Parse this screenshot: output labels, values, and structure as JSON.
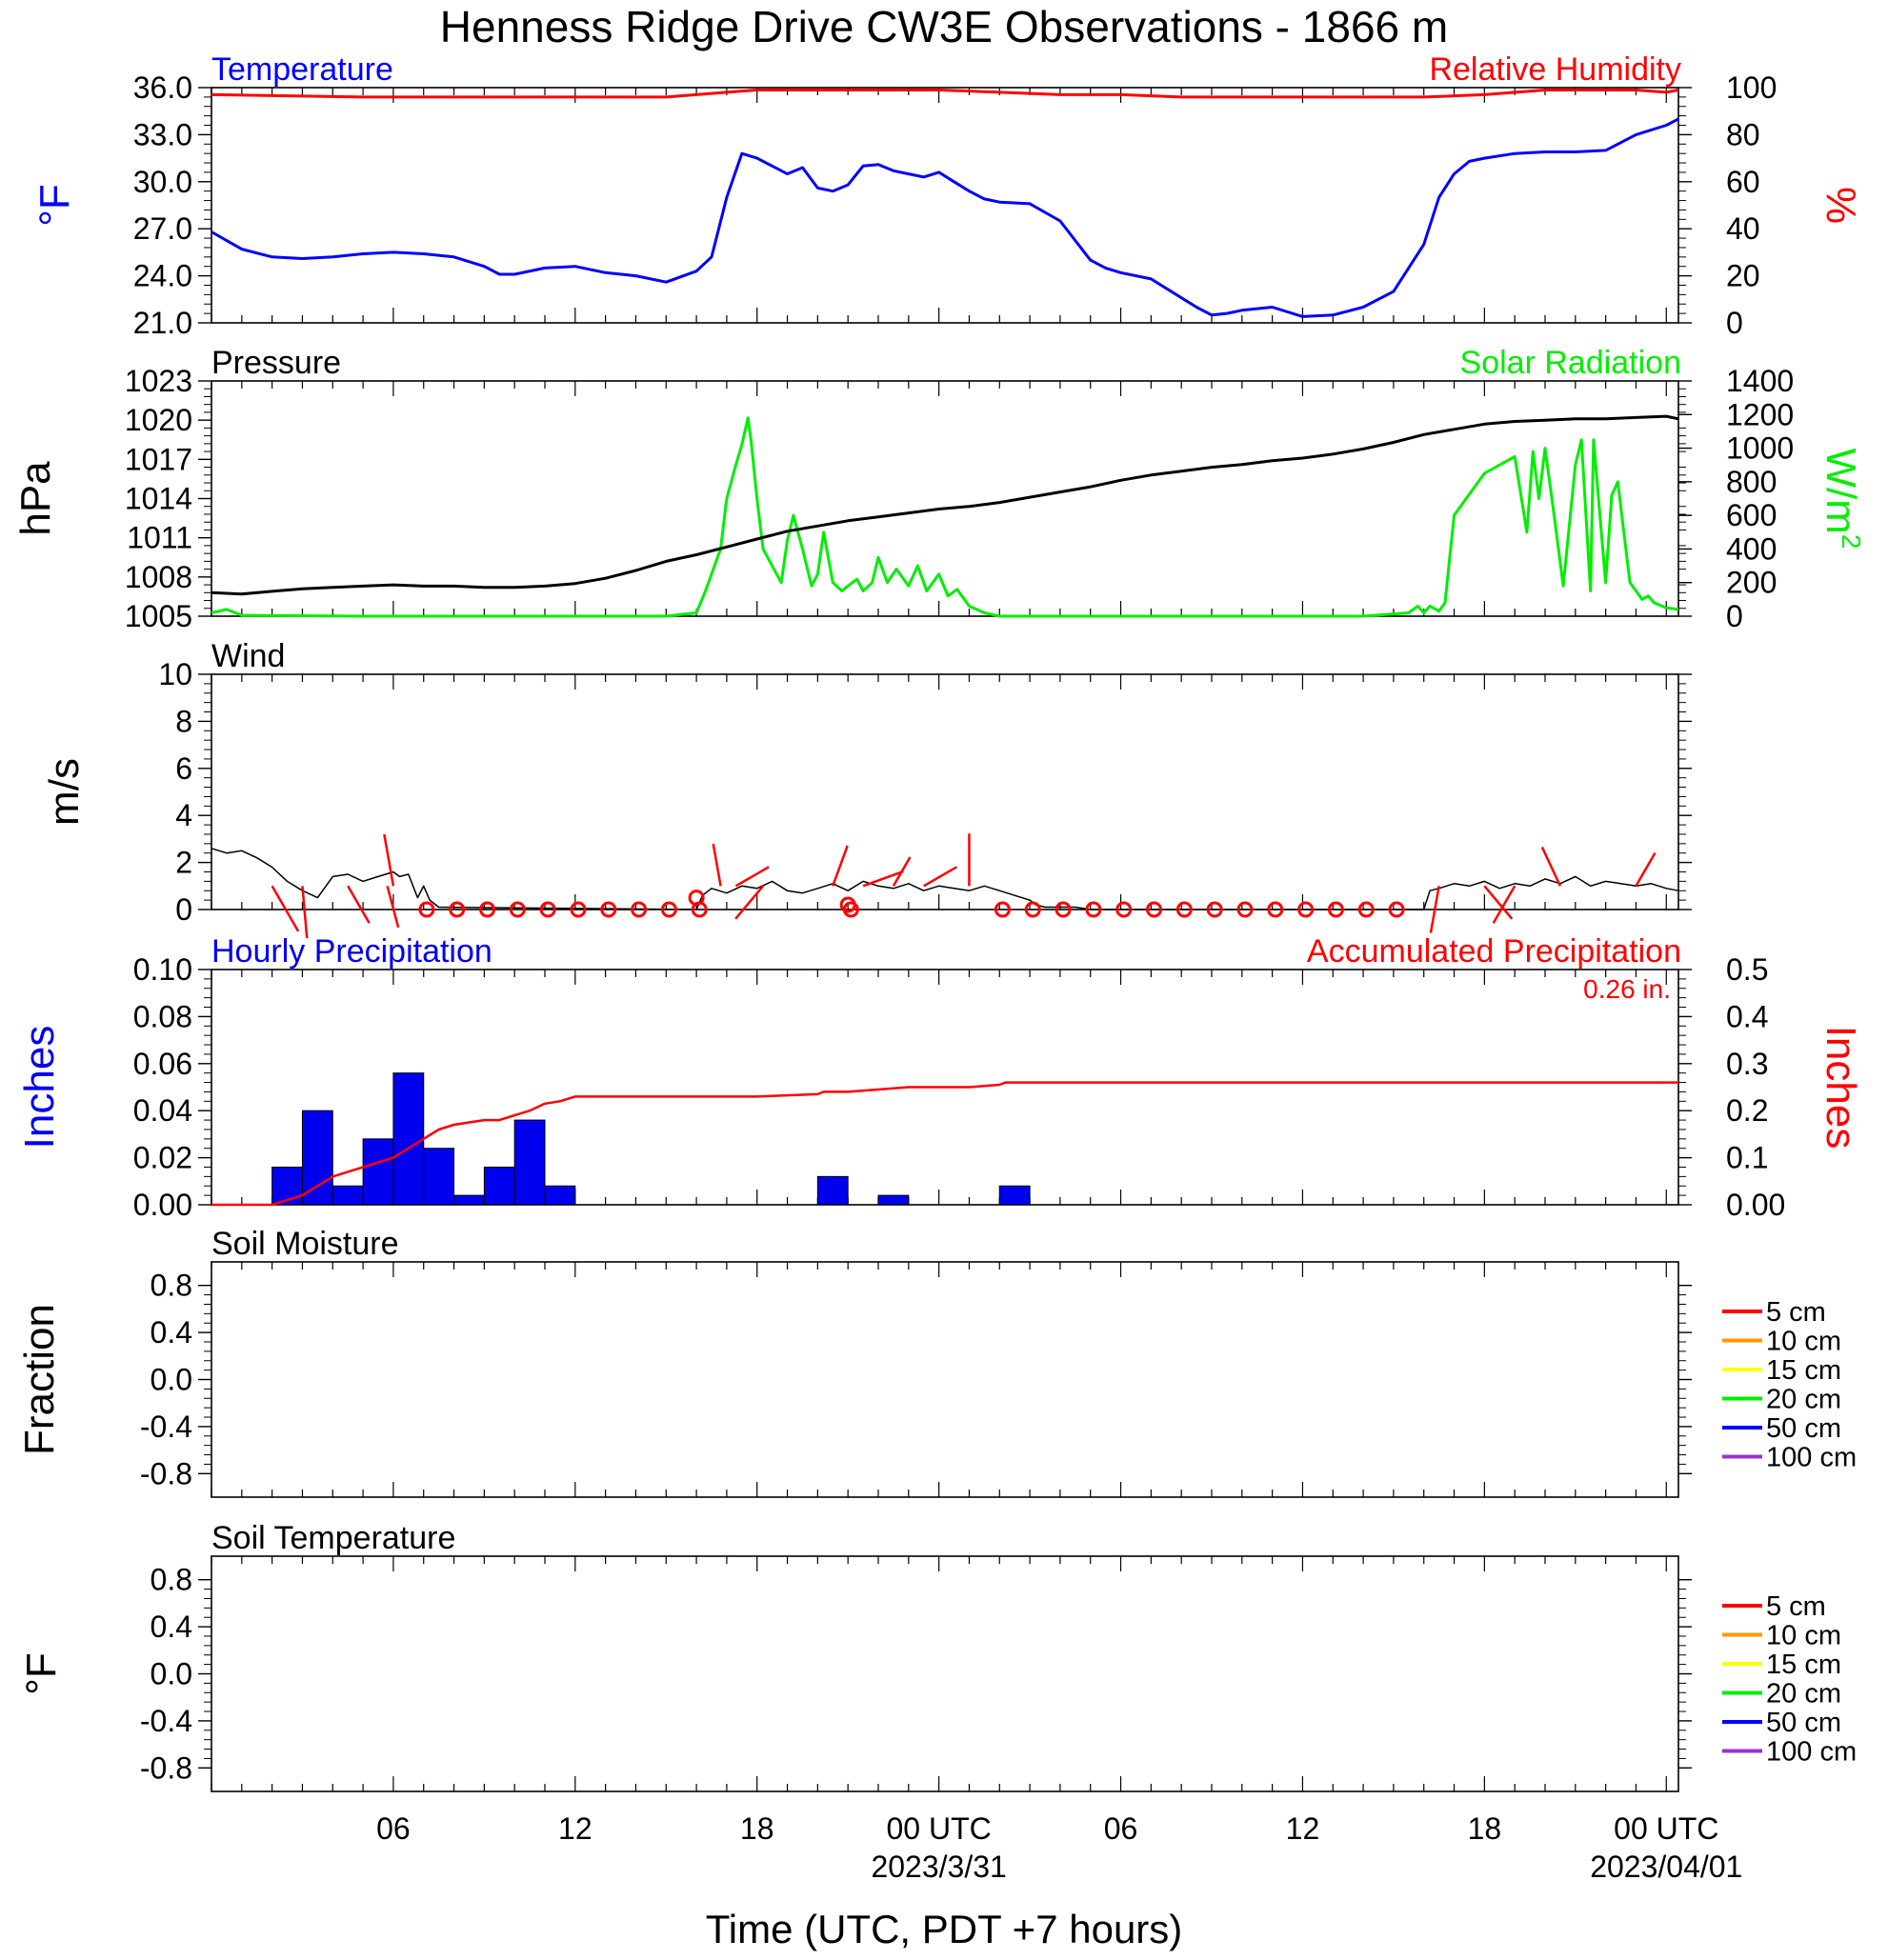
{
  "title": "Henness Ridge Drive CW3E Observations - 1866 m",
  "xlabel": "Time (UTC, PDT +7 hours)",
  "x_ticks": [
    {
      "hour": 6,
      "label": "06",
      "date": ""
    },
    {
      "hour": 12,
      "label": "12",
      "date": ""
    },
    {
      "hour": 18,
      "label": "18",
      "date": ""
    },
    {
      "hour": 24,
      "label": "00 UTC",
      "date": "2023/3/31"
    },
    {
      "hour": 30,
      "label": "06",
      "date": ""
    },
    {
      "hour": 36,
      "label": "12",
      "date": ""
    },
    {
      "hour": 42,
      "label": "18",
      "date": ""
    },
    {
      "hour": 48,
      "label": "00 UTC",
      "date": "2023/04/01"
    }
  ],
  "chart_data": [
    {
      "type": "line",
      "panel": "temperature",
      "title_left": "Temperature",
      "title_right": "Relative Humidity",
      "ylabel_left": "°F",
      "ylabel_right": "%",
      "ylim_left": [
        21,
        36
      ],
      "yticks_left": [
        "21.0",
        "24.0",
        "27.0",
        "30.0",
        "33.0",
        "36.0"
      ],
      "ylim_right": [
        0,
        100
      ],
      "yticks_right": [
        "0",
        "20",
        "40",
        "60",
        "80",
        "100"
      ],
      "colors": {
        "left": "#0000ff",
        "right": "#ff0000"
      },
      "series_left": {
        "name": "Temperature",
        "x": [
          0,
          1,
          2,
          3,
          4,
          5,
          6,
          7,
          8,
          9,
          9.5,
          10,
          11,
          12,
          13,
          14,
          15,
          16,
          16.5,
          17,
          17.5,
          18,
          18.5,
          19,
          19.5,
          20,
          20.5,
          21,
          21.5,
          22,
          22.5,
          23,
          23.5,
          24,
          24.5,
          25,
          25.5,
          26,
          27,
          28,
          29,
          29.5,
          30,
          31,
          32,
          32.5,
          33,
          33.5,
          34,
          35,
          36,
          37,
          38,
          39,
          40,
          40.5,
          41,
          41.5,
          42,
          43,
          44,
          45,
          46,
          47,
          48,
          48.4
        ],
        "y": [
          26.8,
          25.7,
          25.2,
          25.1,
          25.2,
          25.4,
          25.5,
          25.4,
          25.2,
          24.6,
          24.1,
          24.1,
          24.5,
          24.6,
          24.2,
          24.0,
          23.6,
          24.3,
          25.2,
          29.0,
          31.8,
          31.5,
          31.0,
          30.5,
          30.9,
          29.6,
          29.4,
          29.8,
          31.0,
          31.1,
          30.7,
          30.5,
          30.3,
          30.6,
          30.0,
          29.4,
          28.9,
          28.7,
          28.6,
          27.5,
          25.0,
          24.5,
          24.2,
          23.8,
          22.6,
          22.0,
          21.5,
          21.6,
          21.8,
          22.0,
          21.4,
          21.5,
          22.0,
          23.0,
          26.0,
          29.0,
          30.5,
          31.3,
          31.5,
          31.8,
          31.9,
          31.9,
          32.0,
          33.0,
          33.6,
          34.0
        ]
      },
      "series_right": {
        "name": "Relative Humidity",
        "x": [
          0,
          5,
          10,
          15,
          16,
          17,
          18,
          20,
          24,
          26,
          28,
          30,
          32,
          34,
          36,
          38,
          40,
          42,
          44,
          46,
          47,
          48,
          48.4
        ],
        "y": [
          97,
          96,
          96,
          96,
          97,
          98,
          99,
          99,
          99,
          98,
          97,
          97,
          96,
          96,
          96,
          96,
          96,
          97,
          99,
          99,
          99,
          98,
          99
        ]
      }
    },
    {
      "type": "line",
      "panel": "pressure",
      "title_left": "Pressure",
      "title_right": "Solar Radiation",
      "ylabel_left": "hPa",
      "ylabel_right": "W/m",
      "ylabel_right_sup": "2",
      "ylim_left": [
        1005,
        1023
      ],
      "yticks_left": [
        "1005",
        "1008",
        "1011",
        "1014",
        "1017",
        "1020",
        "1023"
      ],
      "ylim_right": [
        0,
        1400
      ],
      "yticks_right": [
        "0",
        "200",
        "400",
        "600",
        "800",
        "1000",
        "1200",
        "1400"
      ],
      "colors": {
        "left": "#000000",
        "right": "#00ee00"
      },
      "series_left": {
        "name": "Pressure",
        "x": [
          0,
          1,
          2,
          3,
          4,
          5,
          6,
          7,
          8,
          9,
          10,
          11,
          12,
          13,
          14,
          15,
          16,
          17,
          18,
          19,
          20,
          21,
          22,
          23,
          24,
          25,
          26,
          27,
          28,
          29,
          30,
          31,
          32,
          33,
          34,
          35,
          36,
          37,
          38,
          39,
          40,
          41,
          42,
          43,
          44,
          45,
          46,
          47,
          48,
          48.4
        ],
        "y": [
          1006.8,
          1006.7,
          1006.9,
          1007.1,
          1007.2,
          1007.3,
          1007.4,
          1007.3,
          1007.3,
          1007.2,
          1007.2,
          1007.3,
          1007.5,
          1007.9,
          1008.5,
          1009.2,
          1009.7,
          1010.3,
          1010.9,
          1011.5,
          1011.9,
          1012.3,
          1012.6,
          1012.9,
          1013.2,
          1013.4,
          1013.7,
          1014.1,
          1014.5,
          1014.9,
          1015.4,
          1015.8,
          1016.1,
          1016.4,
          1016.6,
          1016.9,
          1017.1,
          1017.4,
          1017.8,
          1018.3,
          1018.9,
          1019.3,
          1019.7,
          1019.9,
          1020.0,
          1020.1,
          1020.1,
          1020.2,
          1020.3,
          1020.1
        ]
      },
      "series_right": {
        "name": "Solar Radiation",
        "x": [
          0,
          0.5,
          1,
          5,
          10,
          13,
          15,
          16,
          16.3,
          16.8,
          17,
          17.3,
          17.5,
          17.7,
          17.8,
          18,
          18.2,
          18.5,
          18.8,
          19,
          19.2,
          19.5,
          19.8,
          20,
          20.2,
          20.5,
          20.8,
          21,
          21.3,
          21.5,
          21.8,
          22,
          22.3,
          22.6,
          23,
          23.3,
          23.6,
          24,
          24.3,
          24.6,
          25,
          25.5,
          26,
          27,
          30,
          35,
          38,
          39.5,
          39.8,
          40,
          40.2,
          40.5,
          40.7,
          41,
          42,
          43,
          43.4,
          43.6,
          43.8,
          44,
          44.3,
          44.6,
          45,
          45.2,
          45.5,
          45.6,
          46,
          46.2,
          46.4,
          46.6,
          46.8,
          47,
          47.2,
          47.4,
          47.6,
          48,
          48.4
        ],
        "y": [
          20,
          40,
          5,
          0,
          0,
          0,
          0,
          20,
          150,
          400,
          700,
          900,
          1020,
          1180,
          1050,
          700,
          400,
          300,
          200,
          450,
          600,
          400,
          180,
          250,
          500,
          200,
          150,
          180,
          220,
          150,
          200,
          350,
          200,
          280,
          180,
          300,
          150,
          250,
          120,
          160,
          60,
          20,
          0,
          0,
          0,
          0,
          0,
          20,
          60,
          20,
          60,
          30,
          80,
          600,
          850,
          950,
          500,
          980,
          700,
          1000,
          600,
          180,
          900,
          1050,
          150,
          1050,
          200,
          720,
          800,
          500,
          200,
          150,
          100,
          120,
          80,
          50,
          40
        ]
      }
    },
    {
      "type": "line",
      "panel": "wind",
      "title_left": "Wind",
      "ylabel_left": "m/s",
      "ylim_left": [
        0,
        10
      ],
      "yticks_left": [
        "0",
        "2",
        "4",
        "6",
        "8",
        "10"
      ],
      "colors": {
        "speed": "#000000",
        "barbs": "#ff0000",
        "calm": "#ff0000"
      },
      "series": [
        {
          "name": "Wind Speed",
          "x": [
            0,
            0.5,
            1,
            1.5,
            2,
            2.5,
            3,
            3.5,
            4,
            4.5,
            5,
            5.5,
            6,
            6.2,
            6.5,
            6.8,
            7,
            7.2,
            7.5,
            16,
            16.2,
            16.5,
            17,
            17.5,
            18,
            18.5,
            19,
            19.5,
            20,
            20.5,
            21,
            21.5,
            22,
            22.5,
            23,
            23.5,
            24,
            24.5,
            25,
            25.5,
            26,
            26.5,
            27,
            27.2,
            27.5,
            28,
            28.5,
            29,
            40,
            40.2,
            40.5,
            41,
            41.5,
            42,
            42.5,
            43,
            43.5,
            44,
            44.5,
            45,
            45.5,
            46,
            46.5,
            47,
            47.5,
            48,
            48.4
          ],
          "y": [
            2.6,
            2.4,
            2.5,
            2.2,
            1.8,
            1.2,
            0.8,
            0.5,
            1.4,
            1.5,
            1.2,
            1.4,
            1.6,
            1.4,
            1.5,
            0.5,
            1.0,
            0.4,
            0.1,
            0,
            0.6,
            0.9,
            0.7,
            1.0,
            0.9,
            1.2,
            0.8,
            0.7,
            0.9,
            1.1,
            0.8,
            1.2,
            1.0,
            0.9,
            1.1,
            0.8,
            1.0,
            0.9,
            0.8,
            1.0,
            0.8,
            0.6,
            0.4,
            0.2,
            0.1,
            0.1,
            0.1,
            0,
            0,
            0.8,
            0.9,
            1.1,
            1.0,
            1.2,
            0.9,
            1.1,
            1.0,
            1.3,
            1.1,
            1.4,
            1.0,
            1.2,
            1.1,
            1.0,
            1.1,
            0.9,
            0.8
          ]
        }
      ],
      "calm_hours": [
        7,
        8,
        9,
        10,
        11,
        12,
        13,
        14,
        15,
        16,
        21,
        26,
        27,
        28,
        29,
        30,
        31,
        32,
        33,
        34,
        35,
        36,
        37,
        38,
        39
      ],
      "barbs": [
        {
          "x": 2,
          "len": 55,
          "angle": 150
        },
        {
          "x": 3,
          "len": 55,
          "angle": 175
        },
        {
          "x": 4.5,
          "len": 45,
          "angle": 150
        },
        {
          "x": 5.8,
          "len": 45,
          "angle": 165
        },
        {
          "x": 6,
          "len": 55,
          "angle": -10
        },
        {
          "x": 16.8,
          "len": 45,
          "angle": -10
        },
        {
          "x": 17.3,
          "len": 40,
          "angle": 60
        },
        {
          "x": 18.2,
          "len": 45,
          "angle": -140
        },
        {
          "x": 20.5,
          "len": 45,
          "angle": 20
        },
        {
          "x": 21.5,
          "len": 45,
          "angle": 70
        },
        {
          "x": 22.5,
          "len": 35,
          "angle": 30
        },
        {
          "x": 23.5,
          "len": 40,
          "angle": 60
        },
        {
          "x": 25,
          "len": 55,
          "angle": 0
        },
        {
          "x": 40.5,
          "len": 50,
          "angle": -170
        },
        {
          "x": 42,
          "len": 45,
          "angle": 140
        },
        {
          "x": 43,
          "len": 45,
          "angle": -150
        },
        {
          "x": 44.5,
          "len": 45,
          "angle": -25
        },
        {
          "x": 47,
          "len": 40,
          "angle": 30
        }
      ]
    },
    {
      "type": "bar",
      "panel": "precipitation",
      "title_left": "Hourly Precipitation",
      "title_right": "Accumulated Precipitation",
      "total_label": "0.26 in.",
      "ylabel_left": "Inches",
      "ylabel_right": "Inches",
      "ylim_left": [
        0,
        0.1
      ],
      "yticks_left": [
        "0.00",
        "0.02",
        "0.04",
        "0.06",
        "0.08",
        "0.10"
      ],
      "ylim_right": [
        0,
        0.5
      ],
      "yticks_right": [
        "0.00",
        "0.1",
        "0.2",
        "0.3",
        "0.4",
        "0.5"
      ],
      "colors": {
        "bars": "#0000ee",
        "accum": "#ff0000"
      },
      "bars": {
        "name": "Hourly Precipitation",
        "hour": [
          2,
          3,
          4,
          5,
          6,
          7,
          8,
          9,
          10,
          11,
          12,
          20,
          22,
          26
        ],
        "values": [
          0.016,
          0.04,
          0.008,
          0.028,
          0.056,
          0.024,
          0.004,
          0.016,
          0.036,
          0.008,
          0,
          0.012,
          0.004,
          0.008
        ]
      },
      "series_right": {
        "name": "Accumulated Precipitation",
        "x": [
          0,
          2,
          2.5,
          3,
          3.5,
          4,
          4.5,
          5,
          5.5,
          6,
          6.5,
          7,
          7.5,
          8,
          8.5,
          9,
          9.5,
          10,
          10.5,
          11,
          11.5,
          12,
          13,
          16,
          18,
          20,
          20.2,
          21,
          22,
          23,
          24,
          25,
          26,
          26.2,
          30,
          36,
          42,
          48,
          48.4
        ],
        "y": [
          0,
          0,
          0.01,
          0.02,
          0.04,
          0.06,
          0.07,
          0.08,
          0.09,
          0.1,
          0.12,
          0.14,
          0.16,
          0.17,
          0.175,
          0.18,
          0.18,
          0.19,
          0.2,
          0.215,
          0.22,
          0.23,
          0.23,
          0.23,
          0.23,
          0.235,
          0.24,
          0.24,
          0.245,
          0.25,
          0.25,
          0.25,
          0.255,
          0.26,
          0.26,
          0.26,
          0.26,
          0.26,
          0.26
        ]
      }
    },
    {
      "type": "line",
      "panel": "soil_moisture",
      "title_left": "Soil Moisture",
      "ylabel_left": "Fraction",
      "ylim_left": [
        -1,
        1
      ],
      "yticks_left": [
        "-0.8",
        "-0.4",
        "0.0",
        "0.4",
        "0.8"
      ],
      "series": [],
      "legend": [
        {
          "label": "5 cm",
          "color": "#ff0000"
        },
        {
          "label": "10 cm",
          "color": "#ff9900"
        },
        {
          "label": "15 cm",
          "color": "#ffff00"
        },
        {
          "label": "20 cm",
          "color": "#00ee00"
        },
        {
          "label": "50 cm",
          "color": "#0000ff"
        },
        {
          "label": "100 cm",
          "color": "#9933cc"
        }
      ]
    },
    {
      "type": "line",
      "panel": "soil_temperature",
      "title_left": "Soil Temperature",
      "ylabel_left": "°F",
      "ylim_left": [
        -1,
        1
      ],
      "yticks_left": [
        "-0.8",
        "-0.4",
        "0.0",
        "0.4",
        "0.8"
      ],
      "series": [],
      "legend": [
        {
          "label": "5 cm",
          "color": "#ff0000"
        },
        {
          "label": "10 cm",
          "color": "#ff9900"
        },
        {
          "label": "15 cm",
          "color": "#ffff00"
        },
        {
          "label": "20 cm",
          "color": "#00ee00"
        },
        {
          "label": "50 cm",
          "color": "#0000ff"
        },
        {
          "label": "100 cm",
          "color": "#9933cc"
        }
      ]
    }
  ]
}
